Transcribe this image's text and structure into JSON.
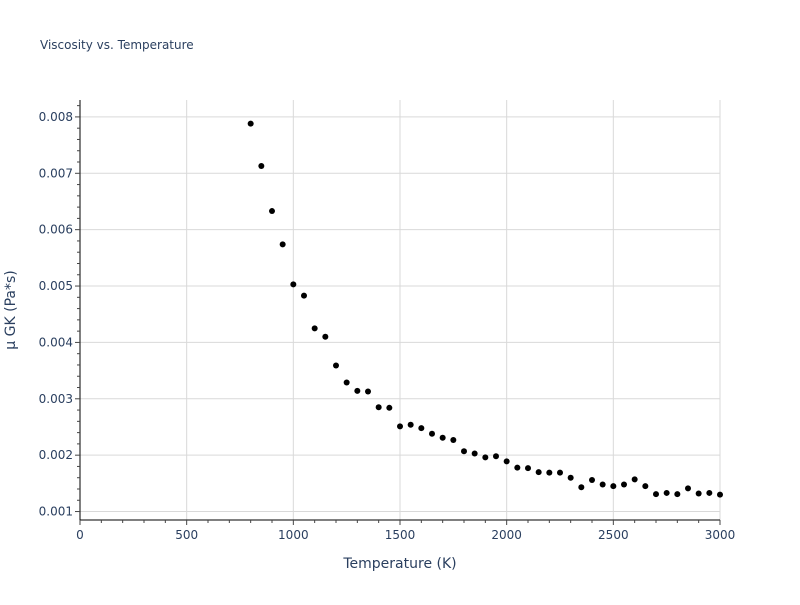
{
  "chart_data": {
    "type": "scatter",
    "title": "Viscosity vs. Temperature",
    "xlabel": "Temperature (K)",
    "ylabel": "μ GK (Pa*s)",
    "xlim": [
      0,
      3000
    ],
    "ylim": [
      0.00085,
      0.0083
    ],
    "xticks": [
      0,
      500,
      1000,
      1500,
      2000,
      2500,
      3000
    ],
    "yticks": [
      0.001,
      0.002,
      0.003,
      0.004,
      0.005,
      0.006,
      0.007,
      0.008
    ],
    "ytick_labels": [
      "0.001",
      "0.002",
      "0.003",
      "0.004",
      "0.005",
      "0.006",
      "0.007",
      "0.008"
    ],
    "grid": true,
    "marker_color": "#000000",
    "series": [
      {
        "x": [
          800,
          850,
          900,
          950,
          1000,
          1050,
          1100,
          1150,
          1200,
          1250,
          1300,
          1350,
          1400,
          1450,
          1500,
          1550,
          1600,
          1650,
          1700,
          1750,
          1800,
          1850,
          1900,
          1950,
          2000,
          2050,
          2100,
          2150,
          2200,
          2250,
          2300,
          2350,
          2400,
          2450,
          2500,
          2550,
          2600,
          2650,
          2700,
          2750,
          2800,
          2850,
          2900,
          2950,
          3000
        ],
        "y": [
          0.00788,
          0.00713,
          0.00633,
          0.00574,
          0.00503,
          0.00483,
          0.00425,
          0.0041,
          0.00359,
          0.00329,
          0.00314,
          0.00313,
          0.00285,
          0.00284,
          0.00251,
          0.00254,
          0.00248,
          0.00238,
          0.00231,
          0.00227,
          0.00207,
          0.00203,
          0.00196,
          0.00198,
          0.00189,
          0.00178,
          0.00177,
          0.0017,
          0.00169,
          0.00169,
          0.0016,
          0.00143,
          0.00156,
          0.00148,
          0.00145,
          0.00148,
          0.00157,
          0.00145,
          0.00131,
          0.00133,
          0.00131,
          0.00141,
          0.00132,
          0.00133,
          0.0013
        ]
      }
    ]
  }
}
